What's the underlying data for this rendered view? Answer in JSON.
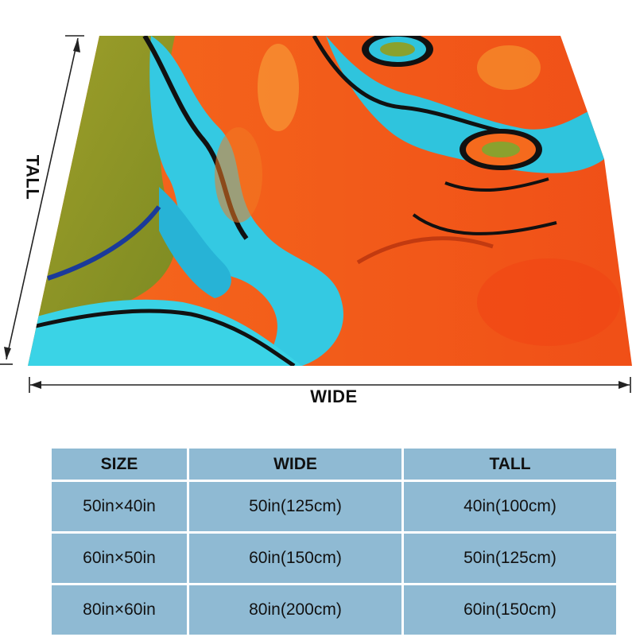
{
  "dimensions": {
    "wide_label": "WIDE",
    "tall_label": "TALL"
  },
  "colors": {
    "table_cell": "#8fbad3",
    "accent_orange": "#f0561a",
    "accent_cyan": "#3ad3e6",
    "accent_olive": "#9a9a28"
  },
  "size_table": {
    "headers": [
      "SIZE",
      "WIDE",
      "TALL"
    ],
    "rows": [
      [
        "50in×40in",
        "50in(125cm)",
        "40in(100cm)"
      ],
      [
        "60in×50in",
        "60in(150cm)",
        "50in(125cm)"
      ],
      [
        "80in×60in",
        "80in(200cm)",
        "60in(150cm)"
      ]
    ]
  }
}
